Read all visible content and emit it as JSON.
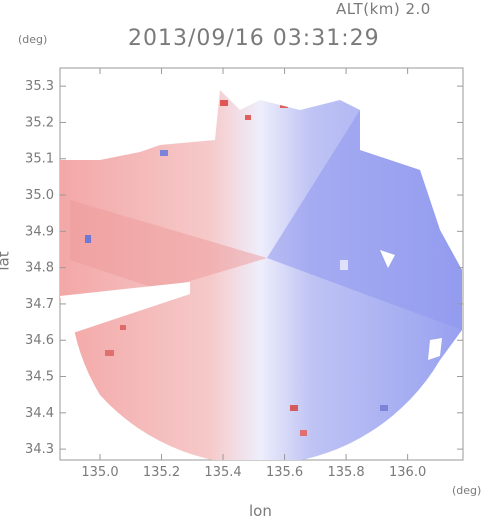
{
  "header": {
    "altitude_label": "ALT(km) 2.0",
    "timestamp": "2013/09/16 03:31:29"
  },
  "axes": {
    "y_unit": "(deg)",
    "x_unit": "(deg)",
    "x_label": "lon",
    "y_label": "lat",
    "x_ticks": [
      "135.0",
      "135.2",
      "135.4",
      "135.6",
      "135.8",
      "136.0"
    ],
    "y_ticks": [
      "34.3",
      "34.4",
      "34.5",
      "34.6",
      "34.7",
      "34.8",
      "34.9",
      "35.0",
      "35.1",
      "35.2",
      "35.3"
    ]
  },
  "map": {
    "type": "radar-doppler-velocity",
    "lon_range": [
      134.87,
      136.18
    ],
    "lat_range": [
      34.27,
      35.35
    ],
    "radar_center": {
      "lon": 135.52,
      "lat": 34.82
    },
    "colors": {
      "approaching": "#9aa3f0",
      "receding": "#f2a3a3",
      "frame": "#9a9a9a"
    }
  }
}
